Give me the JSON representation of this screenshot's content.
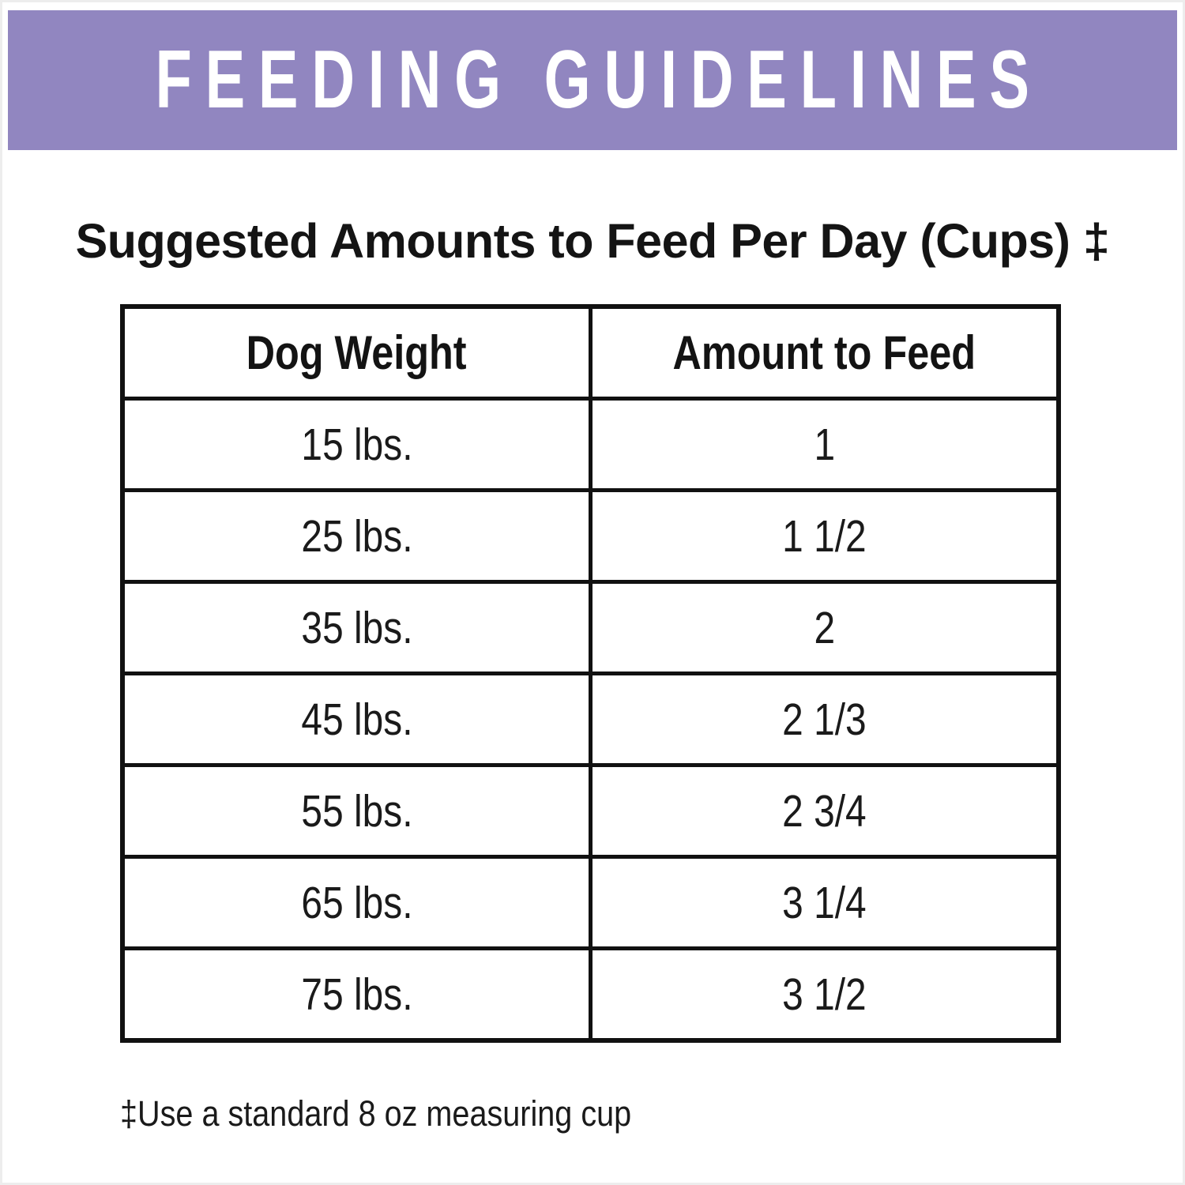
{
  "banner": {
    "title": "FEEDING GUIDELINES",
    "background_color": "#9186C0",
    "text_color": "#FFFFFF"
  },
  "subtitle": "Suggested Amounts to Feed Per Day (Cups) ‡",
  "table": {
    "headers": [
      "Dog Weight",
      "Amount to Feed"
    ],
    "rows": [
      [
        "15 lbs.",
        "1"
      ],
      [
        "25 lbs.",
        "1 1/2"
      ],
      [
        "35 lbs.",
        "2"
      ],
      [
        "45 lbs.",
        "2 1/3"
      ],
      [
        "55 lbs.",
        "2 3/4"
      ],
      [
        "65 lbs.",
        "3 1/4"
      ],
      [
        "75 lbs.",
        "3 1/2"
      ]
    ]
  },
  "footnote": "‡Use a standard 8 oz measuring cup"
}
